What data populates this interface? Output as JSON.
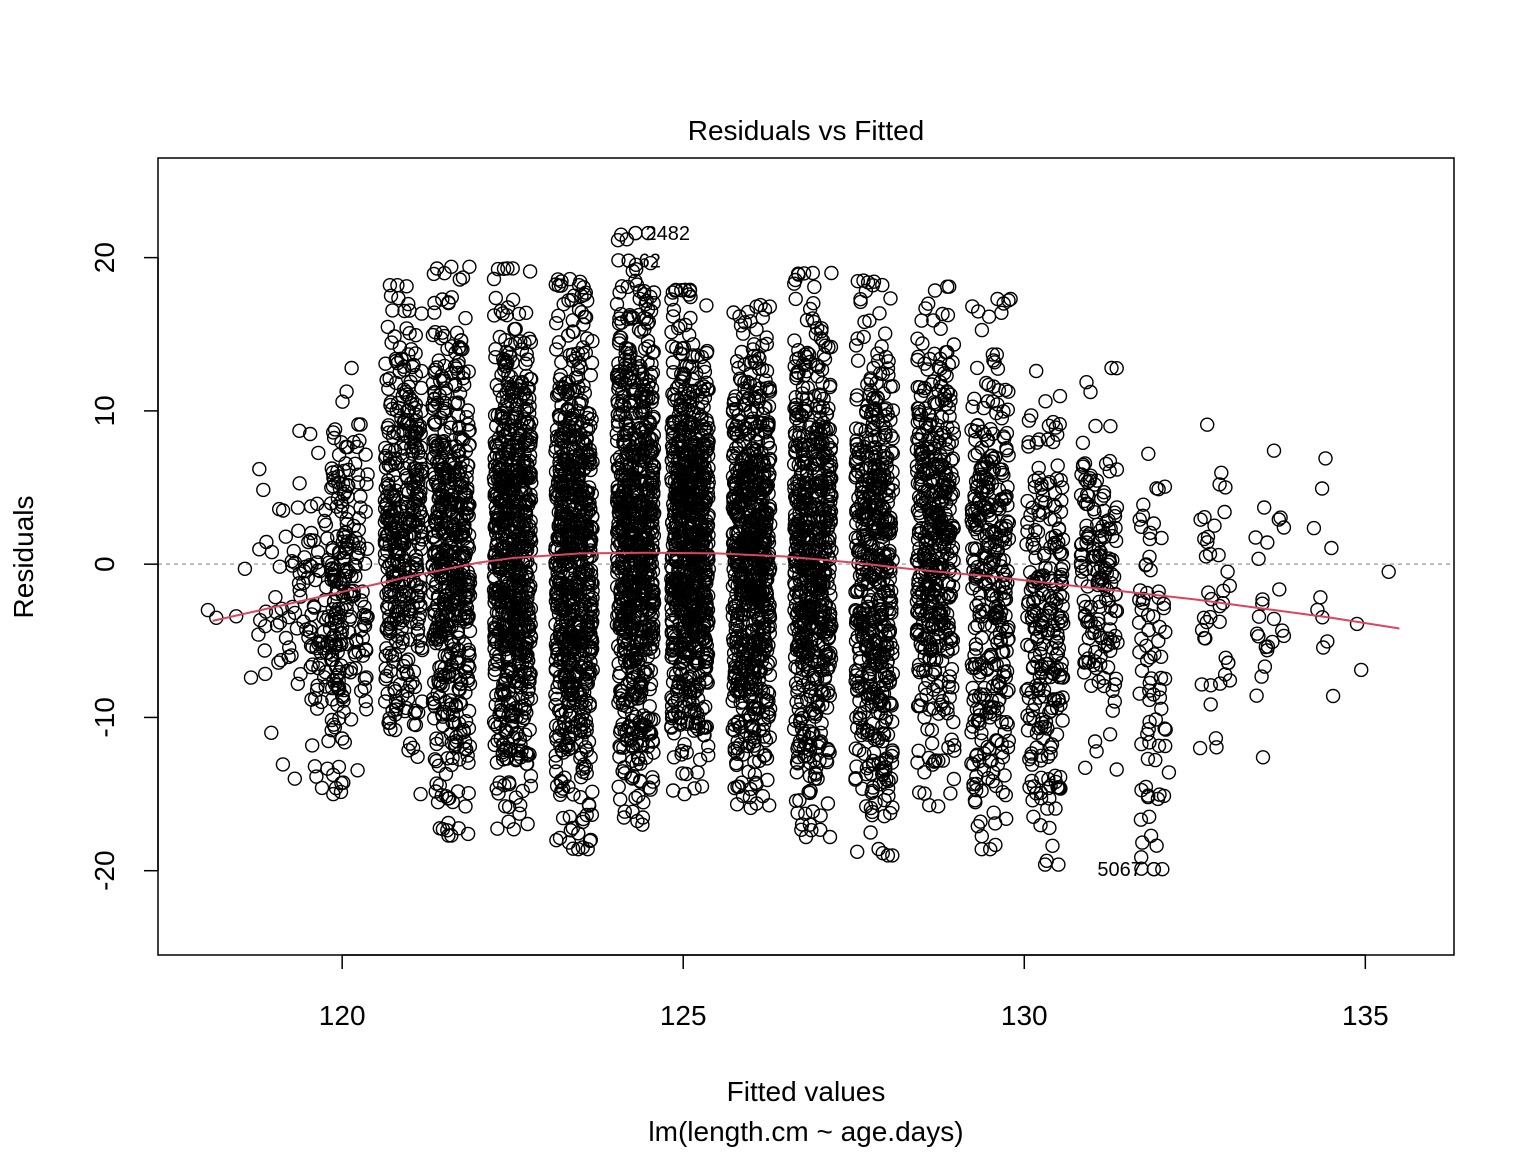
{
  "chart_data": {
    "type": "scatter",
    "title": "Residuals vs Fitted",
    "xlabel": "Fitted values",
    "subtitle": "lm(length.cm ~ age.days)",
    "ylabel": "Residuals",
    "xlim": [
      117.3,
      136.3
    ],
    "ylim": [
      -25.5,
      26.5
    ],
    "x_ticks": [
      120,
      125,
      130,
      135
    ],
    "y_ticks": [
      -20,
      -10,
      0,
      10,
      20
    ],
    "x_tick_labels": [
      "120",
      "125",
      "130",
      "135"
    ],
    "y_tick_labels": [
      "-20",
      "-10",
      "0",
      "10",
      "20"
    ],
    "reference_line": {
      "y": 0,
      "style": "dashed",
      "color": "#aaaaaa"
    },
    "point_color": "#000000",
    "point_style": "open-circle",
    "clusters": [
      {
        "x": 118.1,
        "n": 2,
        "ylo": -3.5,
        "yhi": -3.0
      },
      {
        "x": 118.4,
        "n": 2,
        "ylo": -3.4,
        "yhi": -0.3
      },
      {
        "x": 118.6,
        "n": 1,
        "ylo": -7.4,
        "yhi": -7.4
      },
      {
        "x": 118.9,
        "n": 16,
        "ylo": -11.0,
        "yhi": 6.2
      },
      {
        "x": 119.3,
        "n": 40,
        "ylo": -14.0,
        "yhi": 8.7
      },
      {
        "x": 119.8,
        "n": 130,
        "ylo": -14.6,
        "yhi": 8.6
      },
      {
        "x": 120.1,
        "n": 150,
        "ylo": -15.0,
        "yhi": 12.8
      },
      {
        "x": 120.9,
        "n": 400,
        "ylo": -15.0,
        "yhi": 18.2
      },
      {
        "x": 121.6,
        "n": 550,
        "ylo": -17.7,
        "yhi": 19.4
      },
      {
        "x": 122.5,
        "n": 750,
        "ylo": -17.3,
        "yhi": 19.3
      },
      {
        "x": 123.4,
        "n": 750,
        "ylo": -18.6,
        "yhi": 18.6
      },
      {
        "x": 124.3,
        "n": 800,
        "ylo": -17.0,
        "yhi": 21.6
      },
      {
        "x": 125.1,
        "n": 800,
        "ylo": -15.0,
        "yhi": 17.9
      },
      {
        "x": 126.0,
        "n": 750,
        "ylo": -15.9,
        "yhi": 16.9
      },
      {
        "x": 126.9,
        "n": 650,
        "ylo": -17.8,
        "yhi": 19.0
      },
      {
        "x": 127.8,
        "n": 550,
        "ylo": -19.0,
        "yhi": 18.5
      },
      {
        "x": 128.7,
        "n": 450,
        "ylo": -15.8,
        "yhi": 18.1
      },
      {
        "x": 129.5,
        "n": 350,
        "ylo": -18.6,
        "yhi": 17.3
      },
      {
        "x": 130.3,
        "n": 250,
        "ylo": -19.6,
        "yhi": 12.6
      },
      {
        "x": 131.1,
        "n": 160,
        "ylo": -13.4,
        "yhi": 12.8
      },
      {
        "x": 131.9,
        "n": 80,
        "ylo": -19.9,
        "yhi": 7.2
      },
      {
        "x": 132.8,
        "n": 40,
        "ylo": -12.0,
        "yhi": 9.1
      },
      {
        "x": 133.6,
        "n": 25,
        "ylo": -12.6,
        "yhi": 7.4
      },
      {
        "x": 134.4,
        "n": 10,
        "ylo": -8.6,
        "yhi": 6.9
      },
      {
        "x": 134.9,
        "n": 2,
        "ylo": -6.9,
        "yhi": -3.9
      },
      {
        "x": 135.5,
        "n": 1,
        "ylo": -0.5,
        "yhi": -0.5
      }
    ],
    "points": [
      [
        124.3,
        21.6
      ],
      [
        124.2,
        19.8
      ],
      [
        131.9,
        -19.9
      ],
      [
        121.6,
        19.4
      ],
      [
        122.5,
        19.3
      ],
      [
        126.9,
        19.0
      ],
      [
        120.7,
        18.2
      ],
      [
        128.0,
        -19.0
      ],
      [
        123.6,
        -18.6
      ],
      [
        129.5,
        -18.6
      ],
      [
        130.5,
        -19.6
      ],
      [
        121.6,
        -17.7
      ],
      [
        126.8,
        -17.8
      ],
      [
        129.8,
        17.3
      ],
      [
        128.9,
        18.1
      ],
      [
        125.1,
        17.9
      ]
    ],
    "labeled_points": [
      {
        "label": "2482",
        "x": 124.3,
        "y": 21.6,
        "side": "right"
      },
      {
        "label": "62",
        "x": 124.2,
        "y": 19.8,
        "side": "right"
      },
      {
        "label": "5067",
        "x": 131.9,
        "y": -19.9,
        "side": "left"
      }
    ],
    "smooth_line": {
      "color": "#d9445f",
      "x": [
        118.1,
        119.0,
        120.0,
        121.0,
        122.0,
        122.5,
        123.5,
        124.5,
        125.5,
        126.5,
        127.5,
        128.5,
        129.5,
        130.5,
        131.5,
        132.5,
        133.5,
        134.5,
        135.5
      ],
      "y": [
        -3.7,
        -2.8,
        -1.8,
        -0.8,
        0.1,
        0.4,
        0.7,
        0.75,
        0.7,
        0.5,
        0.1,
        -0.4,
        -0.8,
        -1.3,
        -1.8,
        -2.3,
        -2.9,
        -3.5,
        -4.2
      ]
    }
  }
}
